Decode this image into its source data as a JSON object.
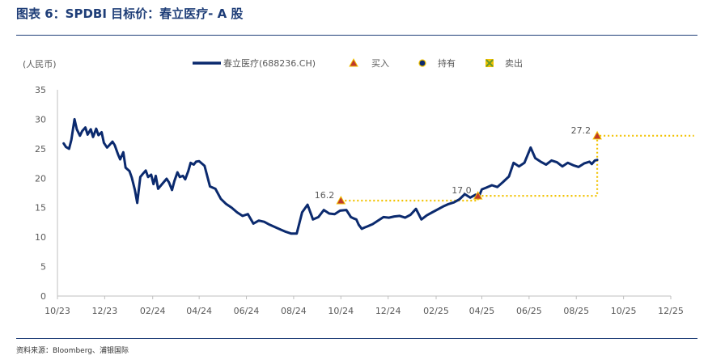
{
  "header": {
    "title": "图表 6：SPDBI 目标价：春立医疗- A 股"
  },
  "footer": {
    "source": "资料来源：Bloomberg、浦银国际"
  },
  "colors": {
    "line": "#0b2a6e",
    "marker": "#f2c200",
    "sell": "#8fbf3f",
    "buy_fill": "#c0392b",
    "rule": "#1f3e78"
  },
  "chart_data": {
    "type": "line",
    "unit_label": "(人民币)",
    "ylim": [
      0,
      35
    ],
    "yticks": [
      0,
      5,
      10,
      15,
      20,
      25,
      30,
      35
    ],
    "xlim": [
      "2023-10",
      "2025-12"
    ],
    "xticks": [
      "10/23",
      "12/23",
      "02/24",
      "04/24",
      "06/24",
      "08/24",
      "10/24",
      "12/24",
      "02/25",
      "04/25",
      "06/25",
      "08/25",
      "10/25",
      "12/25"
    ],
    "grid": false,
    "legend": {
      "placement": "top",
      "entries": [
        {
          "name": "春立医疗(688236.CH)",
          "icon": "line"
        },
        {
          "name": "买入",
          "icon": "triangle-up"
        },
        {
          "name": "持有",
          "icon": "circle"
        },
        {
          "name": "卖出",
          "icon": "x-square"
        }
      ]
    },
    "series": [
      {
        "name": "春立医疗(688236.CH)",
        "x": [
          "2023-10-09",
          "2023-10-12",
          "2023-10-16",
          "2023-10-19",
          "2023-10-23",
          "2023-10-26",
          "2023-10-30",
          "2023-11-02",
          "2023-11-06",
          "2023-11-09",
          "2023-11-13",
          "2023-11-16",
          "2023-11-20",
          "2023-11-23",
          "2023-11-27",
          "2023-11-30",
          "2023-12-04",
          "2023-12-07",
          "2023-12-11",
          "2023-12-14",
          "2023-12-18",
          "2023-12-21",
          "2023-12-25",
          "2023-12-28",
          "2024-01-02",
          "2024-01-05",
          "2024-01-09",
          "2024-01-12",
          "2024-01-16",
          "2024-01-19",
          "2024-01-23",
          "2024-01-26",
          "2024-01-30",
          "2024-02-02",
          "2024-02-05",
          "2024-02-08",
          "2024-02-19",
          "2024-02-22",
          "2024-02-26",
          "2024-02-29",
          "2024-03-04",
          "2024-03-07",
          "2024-03-11",
          "2024-03-14",
          "2024-03-18",
          "2024-03-21",
          "2024-03-25",
          "2024-03-28",
          "2024-04-01",
          "2024-04-08",
          "2024-04-15",
          "2024-04-22",
          "2024-04-29",
          "2024-05-06",
          "2024-05-13",
          "2024-05-20",
          "2024-05-27",
          "2024-06-03",
          "2024-06-10",
          "2024-06-17",
          "2024-06-24",
          "2024-07-01",
          "2024-07-08",
          "2024-07-15",
          "2024-07-22",
          "2024-07-29",
          "2024-08-05",
          "2024-08-12",
          "2024-08-19",
          "2024-08-26",
          "2024-09-02",
          "2024-09-09",
          "2024-09-16",
          "2024-09-23",
          "2024-09-30",
          "2024-10-08",
          "2024-10-10",
          "2024-10-14",
          "2024-10-17",
          "2024-10-21",
          "2024-10-24",
          "2024-10-28",
          "2024-10-31",
          "2024-11-04",
          "2024-11-11",
          "2024-11-18",
          "2024-11-25",
          "2024-12-02",
          "2024-12-09",
          "2024-12-16",
          "2024-12-23",
          "2024-12-30",
          "2025-01-06",
          "2025-01-13",
          "2025-01-20",
          "2025-01-27",
          "2025-02-10",
          "2025-02-17",
          "2025-02-24",
          "2025-03-03",
          "2025-03-10",
          "2025-03-17",
          "2025-03-24",
          "2025-03-28",
          "2025-04-01",
          "2025-04-07",
          "2025-04-14",
          "2025-04-21",
          "2025-04-28",
          "2025-05-06",
          "2025-05-12",
          "2025-05-19",
          "2025-05-26",
          "2025-06-03",
          "2025-06-09",
          "2025-06-16",
          "2025-06-23",
          "2025-06-30",
          "2025-07-07",
          "2025-07-14",
          "2025-07-21",
          "2025-07-28",
          "2025-08-04",
          "2025-08-11",
          "2025-08-18",
          "2025-08-21",
          "2025-08-25",
          "2025-08-28"
        ],
        "y": [
          25.9,
          25.3,
          25.0,
          26.5,
          30.0,
          28.3,
          27.2,
          28.0,
          28.6,
          27.4,
          28.3,
          27.0,
          28.4,
          27.3,
          27.8,
          26.0,
          25.2,
          25.6,
          26.2,
          25.6,
          24.1,
          23.2,
          24.4,
          21.8,
          21.2,
          20.1,
          18.0,
          15.8,
          20.2,
          20.7,
          21.3,
          20.2,
          20.6,
          19.0,
          20.4,
          18.2,
          19.9,
          19.3,
          18.0,
          19.5,
          21.0,
          20.2,
          20.4,
          19.8,
          21.2,
          22.6,
          22.3,
          22.8,
          22.9,
          22.1,
          18.6,
          18.2,
          16.5,
          15.6,
          15.0,
          14.2,
          13.6,
          13.9,
          12.3,
          12.8,
          12.6,
          12.1,
          11.7,
          11.3,
          10.9,
          10.6,
          10.6,
          14.2,
          15.5,
          13.0,
          13.4,
          14.6,
          14.0,
          13.9,
          14.5,
          14.6,
          14.2,
          13.4,
          13.2,
          13.0,
          12.1,
          11.4,
          11.6,
          11.8,
          12.2,
          12.8,
          13.4,
          13.3,
          13.5,
          13.6,
          13.3,
          13.8,
          14.8,
          13.0,
          13.7,
          14.2,
          15.2,
          15.6,
          15.9,
          16.4,
          17.3,
          16.7,
          17.2,
          16.8,
          18.1,
          18.4,
          18.8,
          18.5,
          19.3,
          20.3,
          22.6,
          22.0,
          22.6,
          25.2,
          23.4,
          22.8,
          22.3,
          23.0,
          22.7,
          22.0,
          22.6,
          22.2,
          21.9,
          22.5,
          22.8,
          22.4,
          23.0,
          23.1
        ]
      }
    ],
    "target_prices": [
      {
        "date": "2024-10-01",
        "value": 16.2,
        "label": "16.2",
        "rating": "买入"
      },
      {
        "date": "2025-03-27",
        "value": 17.0,
        "label": "17.0",
        "rating": "买入"
      },
      {
        "date": "2025-08-28",
        "value": 27.2,
        "label": "27.2",
        "rating": "买入"
      }
    ],
    "target_line_end": "2025-12-31"
  }
}
